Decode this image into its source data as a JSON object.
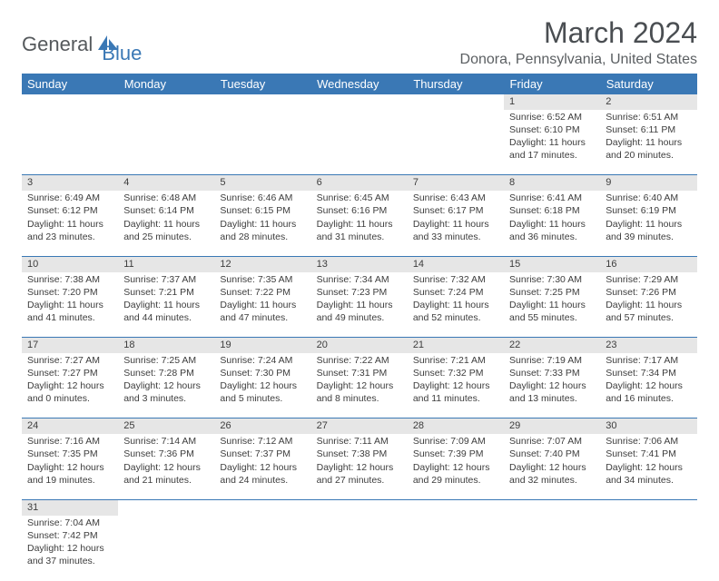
{
  "logo": {
    "part1": "General",
    "part2": "Blue"
  },
  "title": "March 2024",
  "location": "Donora, Pennsylvania, United States",
  "colors": {
    "header_bg": "#3a78b5",
    "header_text": "#ffffff",
    "daynum_bg": "#e6e6e6",
    "cell_text": "#3d3d3d",
    "title_color": "#4a4e52",
    "location_color": "#5b5f62",
    "border_color": "#3a78b5"
  },
  "weekdays": [
    "Sunday",
    "Monday",
    "Tuesday",
    "Wednesday",
    "Thursday",
    "Friday",
    "Saturday"
  ],
  "weeks": [
    [
      null,
      null,
      null,
      null,
      null,
      {
        "num": "1",
        "sunrise": "Sunrise: 6:52 AM",
        "sunset": "Sunset: 6:10 PM",
        "daylight": "Daylight: 11 hours and 17 minutes."
      },
      {
        "num": "2",
        "sunrise": "Sunrise: 6:51 AM",
        "sunset": "Sunset: 6:11 PM",
        "daylight": "Daylight: 11 hours and 20 minutes."
      }
    ],
    [
      {
        "num": "3",
        "sunrise": "Sunrise: 6:49 AM",
        "sunset": "Sunset: 6:12 PM",
        "daylight": "Daylight: 11 hours and 23 minutes."
      },
      {
        "num": "4",
        "sunrise": "Sunrise: 6:48 AM",
        "sunset": "Sunset: 6:14 PM",
        "daylight": "Daylight: 11 hours and 25 minutes."
      },
      {
        "num": "5",
        "sunrise": "Sunrise: 6:46 AM",
        "sunset": "Sunset: 6:15 PM",
        "daylight": "Daylight: 11 hours and 28 minutes."
      },
      {
        "num": "6",
        "sunrise": "Sunrise: 6:45 AM",
        "sunset": "Sunset: 6:16 PM",
        "daylight": "Daylight: 11 hours and 31 minutes."
      },
      {
        "num": "7",
        "sunrise": "Sunrise: 6:43 AM",
        "sunset": "Sunset: 6:17 PM",
        "daylight": "Daylight: 11 hours and 33 minutes."
      },
      {
        "num": "8",
        "sunrise": "Sunrise: 6:41 AM",
        "sunset": "Sunset: 6:18 PM",
        "daylight": "Daylight: 11 hours and 36 minutes."
      },
      {
        "num": "9",
        "sunrise": "Sunrise: 6:40 AM",
        "sunset": "Sunset: 6:19 PM",
        "daylight": "Daylight: 11 hours and 39 minutes."
      }
    ],
    [
      {
        "num": "10",
        "sunrise": "Sunrise: 7:38 AM",
        "sunset": "Sunset: 7:20 PM",
        "daylight": "Daylight: 11 hours and 41 minutes."
      },
      {
        "num": "11",
        "sunrise": "Sunrise: 7:37 AM",
        "sunset": "Sunset: 7:21 PM",
        "daylight": "Daylight: 11 hours and 44 minutes."
      },
      {
        "num": "12",
        "sunrise": "Sunrise: 7:35 AM",
        "sunset": "Sunset: 7:22 PM",
        "daylight": "Daylight: 11 hours and 47 minutes."
      },
      {
        "num": "13",
        "sunrise": "Sunrise: 7:34 AM",
        "sunset": "Sunset: 7:23 PM",
        "daylight": "Daylight: 11 hours and 49 minutes."
      },
      {
        "num": "14",
        "sunrise": "Sunrise: 7:32 AM",
        "sunset": "Sunset: 7:24 PM",
        "daylight": "Daylight: 11 hours and 52 minutes."
      },
      {
        "num": "15",
        "sunrise": "Sunrise: 7:30 AM",
        "sunset": "Sunset: 7:25 PM",
        "daylight": "Daylight: 11 hours and 55 minutes."
      },
      {
        "num": "16",
        "sunrise": "Sunrise: 7:29 AM",
        "sunset": "Sunset: 7:26 PM",
        "daylight": "Daylight: 11 hours and 57 minutes."
      }
    ],
    [
      {
        "num": "17",
        "sunrise": "Sunrise: 7:27 AM",
        "sunset": "Sunset: 7:27 PM",
        "daylight": "Daylight: 12 hours and 0 minutes."
      },
      {
        "num": "18",
        "sunrise": "Sunrise: 7:25 AM",
        "sunset": "Sunset: 7:28 PM",
        "daylight": "Daylight: 12 hours and 3 minutes."
      },
      {
        "num": "19",
        "sunrise": "Sunrise: 7:24 AM",
        "sunset": "Sunset: 7:30 PM",
        "daylight": "Daylight: 12 hours and 5 minutes."
      },
      {
        "num": "20",
        "sunrise": "Sunrise: 7:22 AM",
        "sunset": "Sunset: 7:31 PM",
        "daylight": "Daylight: 12 hours and 8 minutes."
      },
      {
        "num": "21",
        "sunrise": "Sunrise: 7:21 AM",
        "sunset": "Sunset: 7:32 PM",
        "daylight": "Daylight: 12 hours and 11 minutes."
      },
      {
        "num": "22",
        "sunrise": "Sunrise: 7:19 AM",
        "sunset": "Sunset: 7:33 PM",
        "daylight": "Daylight: 12 hours and 13 minutes."
      },
      {
        "num": "23",
        "sunrise": "Sunrise: 7:17 AM",
        "sunset": "Sunset: 7:34 PM",
        "daylight": "Daylight: 12 hours and 16 minutes."
      }
    ],
    [
      {
        "num": "24",
        "sunrise": "Sunrise: 7:16 AM",
        "sunset": "Sunset: 7:35 PM",
        "daylight": "Daylight: 12 hours and 19 minutes."
      },
      {
        "num": "25",
        "sunrise": "Sunrise: 7:14 AM",
        "sunset": "Sunset: 7:36 PM",
        "daylight": "Daylight: 12 hours and 21 minutes."
      },
      {
        "num": "26",
        "sunrise": "Sunrise: 7:12 AM",
        "sunset": "Sunset: 7:37 PM",
        "daylight": "Daylight: 12 hours and 24 minutes."
      },
      {
        "num": "27",
        "sunrise": "Sunrise: 7:11 AM",
        "sunset": "Sunset: 7:38 PM",
        "daylight": "Daylight: 12 hours and 27 minutes."
      },
      {
        "num": "28",
        "sunrise": "Sunrise: 7:09 AM",
        "sunset": "Sunset: 7:39 PM",
        "daylight": "Daylight: 12 hours and 29 minutes."
      },
      {
        "num": "29",
        "sunrise": "Sunrise: 7:07 AM",
        "sunset": "Sunset: 7:40 PM",
        "daylight": "Daylight: 12 hours and 32 minutes."
      },
      {
        "num": "30",
        "sunrise": "Sunrise: 7:06 AM",
        "sunset": "Sunset: 7:41 PM",
        "daylight": "Daylight: 12 hours and 34 minutes."
      }
    ],
    [
      {
        "num": "31",
        "sunrise": "Sunrise: 7:04 AM",
        "sunset": "Sunset: 7:42 PM",
        "daylight": "Daylight: 12 hours and 37 minutes."
      },
      null,
      null,
      null,
      null,
      null,
      null
    ]
  ]
}
